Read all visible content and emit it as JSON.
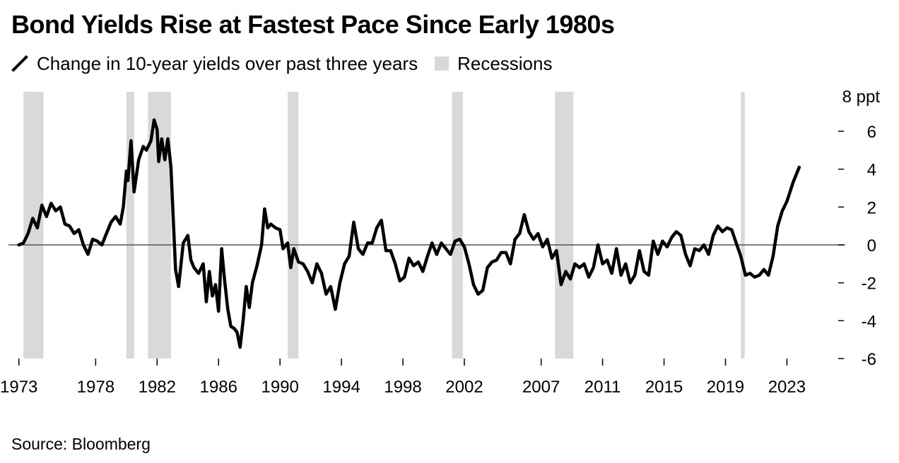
{
  "title": "Bond Yields Rise at Fastest Pace Since Early 1980s",
  "source": "Source: Bloomberg",
  "legend": {
    "line_label": "Change in 10-year yields over past three years",
    "recession_label": "Recessions",
    "line_icon": "diagonal-line-icon"
  },
  "colors": {
    "line": "#000000",
    "recession": "#d9d9d9",
    "zero_line": "#555555"
  },
  "chart_data": {
    "type": "line",
    "title": "Bond Yields Rise at Fastest Pace Since Early 1980s",
    "xlabel": "",
    "ylabel": "ppt",
    "unit_label": "8 ppt",
    "xlim": [
      1972.6,
      2026.8
    ],
    "ylim": [
      -6,
      8
    ],
    "x_ticks": [
      1973,
      1978,
      1982,
      1986,
      1990,
      1994,
      1998,
      2002,
      2007,
      2011,
      2015,
      2019,
      2023
    ],
    "x_tick_labels": [
      "1973",
      "1978",
      "1982",
      "1986",
      "1990",
      "1994",
      "1998",
      "2002",
      "2007",
      "2011",
      "2015",
      "2019",
      "2023"
    ],
    "y_ticks": [
      6,
      4,
      2,
      0,
      -2,
      -4,
      -6
    ],
    "y_tick_labels": [
      "6",
      "4",
      "2",
      "0",
      "-2",
      "-4",
      "-6"
    ],
    "recessions": [
      {
        "start": 1973.3,
        "end": 1974.6
      },
      {
        "start": 1980.0,
        "end": 1980.5
      },
      {
        "start": 1981.4,
        "end": 1982.9
      },
      {
        "start": 1990.5,
        "end": 1991.2
      },
      {
        "start": 2001.2,
        "end": 2001.9
      },
      {
        "start": 2007.9,
        "end": 2009.1
      },
      {
        "start": 2020.0,
        "end": 2020.25
      }
    ],
    "series": [
      {
        "name": "Change in 10-year yields over past three years",
        "x": [
          1973.0,
          1973.3,
          1973.6,
          1973.9,
          1974.2,
          1974.5,
          1974.8,
          1975.1,
          1975.4,
          1975.7,
          1976.0,
          1976.3,
          1976.6,
          1976.9,
          1977.2,
          1977.5,
          1977.8,
          1978.1,
          1978.4,
          1978.7,
          1979.0,
          1979.3,
          1979.6,
          1979.8,
          1980.0,
          1980.1,
          1980.3,
          1980.5,
          1980.8,
          1981.1,
          1981.3,
          1981.6,
          1981.8,
          1982.0,
          1982.1,
          1982.3,
          1982.5,
          1982.7,
          1982.9,
          1983.1,
          1983.2,
          1983.4,
          1983.7,
          1984.0,
          1984.2,
          1984.4,
          1984.7,
          1985.0,
          1985.2,
          1985.4,
          1985.6,
          1985.8,
          1986.0,
          1986.2,
          1986.4,
          1986.6,
          1986.8,
          1987.0,
          1987.2,
          1987.4,
          1987.6,
          1987.8,
          1988.0,
          1988.2,
          1988.5,
          1988.8,
          1989.0,
          1989.2,
          1989.4,
          1989.7,
          1990.0,
          1990.2,
          1990.5,
          1990.7,
          1990.9,
          1991.2,
          1991.5,
          1991.8,
          1992.1,
          1992.4,
          1992.7,
          1993.0,
          1993.3,
          1993.6,
          1993.9,
          1994.2,
          1994.5,
          1994.8,
          1995.1,
          1995.4,
          1995.7,
          1996.0,
          1996.3,
          1996.6,
          1996.9,
          1997.2,
          1997.5,
          1997.8,
          1998.1,
          1998.4,
          1998.7,
          1999.0,
          1999.3,
          1999.6,
          1999.9,
          2000.2,
          2000.5,
          2000.8,
          2001.1,
          2001.4,
          2001.7,
          2002.0,
          2002.3,
          2002.6,
          2002.9,
          2003.2,
          2003.5,
          2003.8,
          2004.1,
          2004.4,
          2004.7,
          2005.0,
          2005.3,
          2005.6,
          2005.9,
          2006.2,
          2006.5,
          2006.8,
          2007.1,
          2007.4,
          2007.7,
          2008.0,
          2008.3,
          2008.6,
          2008.9,
          2009.2,
          2009.5,
          2009.8,
          2010.1,
          2010.4,
          2010.7,
          2011.0,
          2011.3,
          2011.6,
          2011.9,
          2012.2,
          2012.5,
          2012.8,
          2013.1,
          2013.4,
          2013.7,
          2014.0,
          2014.3,
          2014.6,
          2014.9,
          2015.2,
          2015.5,
          2015.8,
          2016.1,
          2016.4,
          2016.7,
          2017.0,
          2017.3,
          2017.6,
          2017.9,
          2018.2,
          2018.5,
          2018.8,
          2019.1,
          2019.4,
          2019.7,
          2020.0,
          2020.3,
          2020.6,
          2020.9,
          2021.2,
          2021.5,
          2021.8,
          2022.1,
          2022.4,
          2022.7,
          2023.0,
          2023.2,
          2023.4,
          2023.6,
          2023.8
        ],
        "values": [
          0.0,
          0.1,
          0.6,
          1.4,
          0.9,
          2.1,
          1.5,
          2.2,
          1.8,
          2.0,
          1.1,
          1.0,
          0.6,
          0.8,
          0.0,
          -0.5,
          0.3,
          0.2,
          0.0,
          0.6,
          1.2,
          1.5,
          1.1,
          2.0,
          3.9,
          3.4,
          5.5,
          2.8,
          4.5,
          5.2,
          5.0,
          5.5,
          6.6,
          6.1,
          4.4,
          5.6,
          4.5,
          5.6,
          4.1,
          0.5,
          -1.3,
          -2.2,
          0.1,
          0.5,
          -0.8,
          -1.2,
          -1.5,
          -1.0,
          -3.0,
          -1.4,
          -2.7,
          -2.1,
          -3.5,
          -0.2,
          -1.9,
          -3.4,
          -4.3,
          -4.4,
          -4.6,
          -5.4,
          -4.0,
          -2.2,
          -3.3,
          -2.0,
          -1.1,
          0.0,
          1.9,
          0.9,
          1.1,
          0.9,
          0.8,
          -0.2,
          0.1,
          -1.2,
          -0.2,
          -0.9,
          -1.0,
          -1.4,
          -2.0,
          -1.0,
          -1.5,
          -2.6,
          -2.2,
          -3.4,
          -2.0,
          -1.0,
          -0.6,
          1.2,
          -0.2,
          -0.5,
          0.1,
          0.1,
          0.9,
          1.3,
          -0.3,
          -0.3,
          -1.0,
          -1.9,
          -1.7,
          -0.7,
          -1.1,
          -0.9,
          -1.4,
          -0.6,
          0.1,
          -0.5,
          0.1,
          -0.2,
          -0.5,
          0.2,
          0.3,
          -0.1,
          -1.0,
          -2.1,
          -2.6,
          -2.4,
          -1.2,
          -0.9,
          -0.8,
          -0.4,
          -0.4,
          -1.0,
          0.3,
          0.6,
          1.6,
          0.7,
          0.3,
          0.6,
          -0.1,
          0.3,
          -0.7,
          -0.3,
          -2.1,
          -1.4,
          -1.8,
          -1.0,
          -1.2,
          -1.0,
          -1.7,
          -1.2,
          0.0,
          -1.0,
          -0.8,
          -1.5,
          -0.2,
          -1.6,
          -1.0,
          -2.0,
          -1.6,
          -0.3,
          -1.4,
          -1.6,
          0.2,
          -0.5,
          0.2,
          -0.1,
          0.4,
          0.7,
          0.5,
          -0.5,
          -1.1,
          -0.2,
          -0.3,
          0.0,
          -0.5,
          0.5,
          1.0,
          0.7,
          0.9,
          0.8,
          0.1,
          -0.6,
          -1.6,
          -1.5,
          -1.7,
          -1.6,
          -1.3,
          -1.6,
          -0.6,
          1.0,
          1.8,
          2.3,
          2.8,
          3.3,
          3.7,
          4.1
        ]
      }
    ]
  }
}
